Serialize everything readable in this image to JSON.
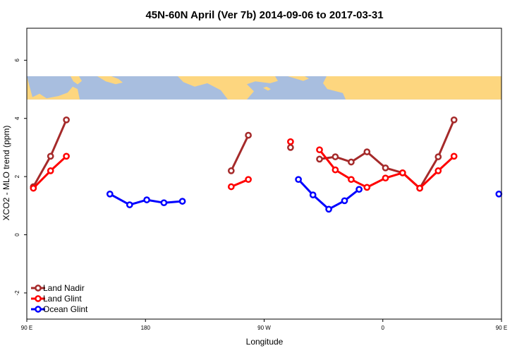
{
  "chart_data": {
    "type": "line",
    "title": "45N-60N April (Ver 7b)   2014-09-06 to 2017-03-31",
    "xlabel": "Longitude",
    "ylabel": "XCO2 - MLO trend (ppm)",
    "xlim": [
      90,
      450
    ],
    "ylim": [
      -2.9,
      7.1
    ],
    "x_ticks": [
      {
        "value": 90,
        "label": "90 E"
      },
      {
        "value": 180,
        "label": "180"
      },
      {
        "value": 270,
        "label": "90 W"
      },
      {
        "value": 360,
        "label": "0"
      },
      {
        "value": 450,
        "label": "90 E"
      },
      {
        "value": 540,
        "label": "180"
      }
    ],
    "y_ticks": [
      {
        "value": -2,
        "label": "-2"
      },
      {
        "value": 0,
        "label": "0"
      },
      {
        "value": 2,
        "label": "2"
      },
      {
        "value": 4,
        "label": "4"
      },
      {
        "value": 6,
        "label": "6"
      }
    ],
    "map_band": {
      "ymin": 4.65,
      "ymax": 5.45,
      "ocean_color": "#a8bedf",
      "land_color": "#fdd67f"
    },
    "legend": {
      "placement": "bottom-left"
    },
    "series": [
      {
        "name": "Land Nadir",
        "color": "#a52a2a",
        "segments": [
          [
            [
              95,
              1.65
            ],
            [
              108,
              2.7
            ],
            [
              120,
              3.95
            ]
          ],
          [
            [
              245,
              2.2
            ],
            [
              258,
              3.42
            ]
          ],
          [
            [
              290,
              3.0
            ]
          ],
          [
            [
              312,
              2.6
            ],
            [
              324,
              2.68
            ],
            [
              336,
              2.5
            ],
            [
              348,
              2.85
            ],
            [
              362,
              2.3
            ],
            [
              375,
              2.13
            ],
            [
              388,
              1.6
            ],
            [
              402,
              2.68
            ],
            [
              414,
              3.95
            ]
          ]
        ]
      },
      {
        "name": "Land Glint",
        "color": "#ff0000",
        "segments": [
          [
            [
              95,
              1.6
            ],
            [
              108,
              2.2
            ],
            [
              120,
              2.7
            ]
          ],
          [
            [
              245,
              1.65
            ],
            [
              258,
              1.9
            ]
          ],
          [
            [
              290,
              3.2
            ]
          ],
          [
            [
              312,
              2.92
            ],
            [
              324,
              2.23
            ],
            [
              336,
              1.9
            ],
            [
              348,
              1.63
            ],
            [
              362,
              1.95
            ],
            [
              375,
              2.13
            ],
            [
              388,
              1.6
            ],
            [
              402,
              2.2
            ],
            [
              414,
              2.7
            ]
          ]
        ]
      },
      {
        "name": "Ocean Glint",
        "color": "#0000ff",
        "segments": [
          [
            [
              153,
              1.4
            ],
            [
              168,
              1.03
            ],
            [
              181,
              1.2
            ],
            [
              194,
              1.1
            ],
            [
              208,
              1.15
            ]
          ],
          [
            [
              296,
              1.9
            ],
            [
              307,
              1.37
            ],
            [
              319,
              0.88
            ],
            [
              331,
              1.17
            ],
            [
              342,
              1.56
            ]
          ],
          [
            [
              448,
              1.4
            ]
          ]
        ]
      }
    ]
  }
}
